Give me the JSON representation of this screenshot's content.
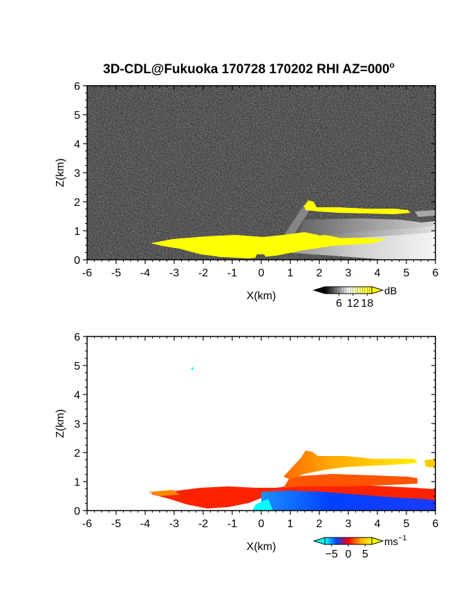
{
  "figure": {
    "title": "3D-CDL@Fukuoka 170728 170202 RHI AZ=000",
    "title_superscript": "o"
  },
  "chart_data": [
    {
      "type": "heatmap",
      "name": "reflectivity-panel",
      "xlabel": "X(km)",
      "ylabel": "Z(km)",
      "xlim": [
        -6,
        6
      ],
      "ylim": [
        0,
        6
      ],
      "xticks": [
        "-6",
        "-5",
        "-4",
        "-3",
        "-2",
        "-1",
        "0",
        "1",
        "2",
        "3",
        "4",
        "5",
        "6"
      ],
      "yticks": [
        "0",
        "1",
        "2",
        "3",
        "4",
        "5",
        "6"
      ],
      "background": "noise",
      "colorbar": {
        "unit": "dB",
        "ticks": [
          "6",
          "12",
          "18"
        ],
        "tick_values": [
          6,
          12,
          18
        ],
        "range": [
          0,
          20
        ],
        "colors": [
          "#000000",
          "#ffffff",
          "#ffff00"
        ]
      },
      "regions": [
        {
          "label": "low-level echo",
          "color": "#ffff00",
          "x": [
            -3.8,
            0.5,
            2.8
          ],
          "z": [
            0.55,
            0.45,
            0.7
          ]
        },
        {
          "label": "elevated layer",
          "color": "#ffff00",
          "x": [
            1.5,
            3.0,
            5.1
          ],
          "z": [
            1.95,
            1.75,
            1.7
          ]
        },
        {
          "label": "gray return",
          "color": "#dddddd",
          "x": [
            1.5,
            6.0
          ],
          "z": [
            0.4,
            1.5
          ]
        }
      ]
    },
    {
      "type": "heatmap",
      "name": "doppler-velocity-panel",
      "xlabel": "X(km)",
      "ylabel": "Z(km)",
      "xlim": [
        -6,
        6
      ],
      "ylim": [
        0,
        6
      ],
      "xticks": [
        "-6",
        "-5",
        "-4",
        "-3",
        "-2",
        "-1",
        "0",
        "1",
        "2",
        "3",
        "4",
        "5",
        "6"
      ],
      "yticks": [
        "0",
        "1",
        "2",
        "3",
        "4",
        "5",
        "6"
      ],
      "background": "white",
      "colorbar": {
        "unit": "ms",
        "unit_superscript": "−1",
        "ticks": [
          "−5",
          "0",
          "5"
        ],
        "tick_values": [
          -5,
          0,
          5
        ],
        "range": [
          -7,
          7
        ],
        "colors": [
          "#00ffff",
          "#0044ff",
          "#ff0000",
          "#ffa500",
          "#ffff00"
        ]
      },
      "regions": [
        {
          "label": "positive velocity layer",
          "color": "#ff3300",
          "x": [
            -3.8,
            0.0,
            6.0
          ],
          "z": [
            0.55,
            0.5,
            0.5
          ]
        },
        {
          "label": "negative velocity core",
          "color": "#0033ff",
          "x": [
            0.0,
            6.0
          ],
          "z": [
            0.0,
            0.45
          ]
        },
        {
          "label": "elevated layer",
          "color": "#ff8800",
          "x": [
            1.5,
            5.2,
            6.0
          ],
          "z": [
            2.0,
            1.7,
            1.6
          ]
        },
        {
          "label": "isolated echo",
          "color": "#00ffff",
          "x": [
            -2.4
          ],
          "z": [
            4.85
          ]
        }
      ]
    }
  ]
}
